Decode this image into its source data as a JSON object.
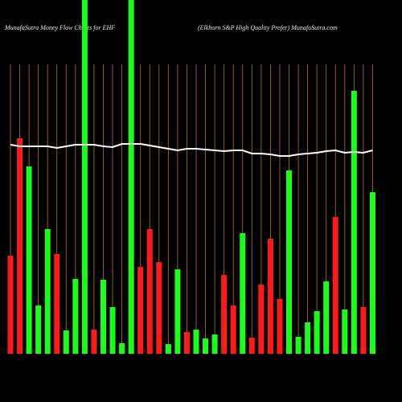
{
  "chart_data": {
    "type": "bar",
    "title": "MunafaSutra  Money Flow  Charts for EHF",
    "subtitle": "(Elkhorn  S&P High Quality Prefer) MunafaSutra.com",
    "categories": [
      null,
      null,
      null,
      null,
      null,
      null,
      null,
      null,
      null,
      null,
      null,
      null,
      null,
      null,
      null,
      null,
      null,
      null,
      null,
      null,
      null,
      null,
      null,
      null,
      null,
      null,
      null,
      null,
      null,
      null,
      null,
      null,
      null,
      null,
      null,
      null,
      null,
      null,
      null,
      null
    ],
    "values": [
      122,
      268,
      233,
      60,
      155,
      124,
      29,
      93,
      440,
      30,
      92,
      58,
      13,
      440,
      108,
      155,
      114,
      12,
      105,
      27,
      30,
      19,
      24,
      98,
      60,
      150,
      20,
      86,
      143,
      68,
      228,
      21,
      39,
      53,
      90,
      170,
      55,
      327,
      58,
      201
    ],
    "bar_colors": [
      "#ff1a1a",
      "#ff1a1a",
      "#1aff1a",
      "#1aff1a",
      "#1aff1a",
      "#ff1a1a",
      "#1aff1a",
      "#1aff1a",
      "#1aff1a",
      "#ff1a1a",
      "#1aff1a",
      "#1aff1a",
      "#1aff1a",
      "#1aff1a",
      "#ff1a1a",
      "#ff1a1a",
      "#ff1a1a",
      "#1aff1a",
      "#1aff1a",
      "#ff1a1a",
      "#1aff1a",
      "#1aff1a",
      "#1aff1a",
      "#ff1a1a",
      "#ff1a1a",
      "#1aff1a",
      "#ff1a1a",
      "#ff1a1a",
      "#ff1a1a",
      "#ff1a1a",
      "#1aff1a",
      "#1aff1a",
      "#1aff1a",
      "#1aff1a",
      "#1aff1a",
      "#ff1a1a",
      "#1aff1a",
      "#1aff1a",
      "#ff1a1a",
      "#1aff1a"
    ],
    "line": {
      "color": "#ffffff",
      "values": [
        260,
        258,
        258,
        258,
        258,
        256,
        258,
        260,
        260,
        260,
        258,
        257,
        261,
        261,
        261,
        259,
        257,
        255,
        253,
        255,
        255,
        254,
        253,
        252,
        253,
        253,
        249,
        249,
        248,
        246,
        246,
        248,
        249,
        250,
        252,
        253,
        250,
        251,
        250,
        253
      ]
    },
    "ylim": [
      0,
      440
    ],
    "grid_color": "#b8731c"
  }
}
